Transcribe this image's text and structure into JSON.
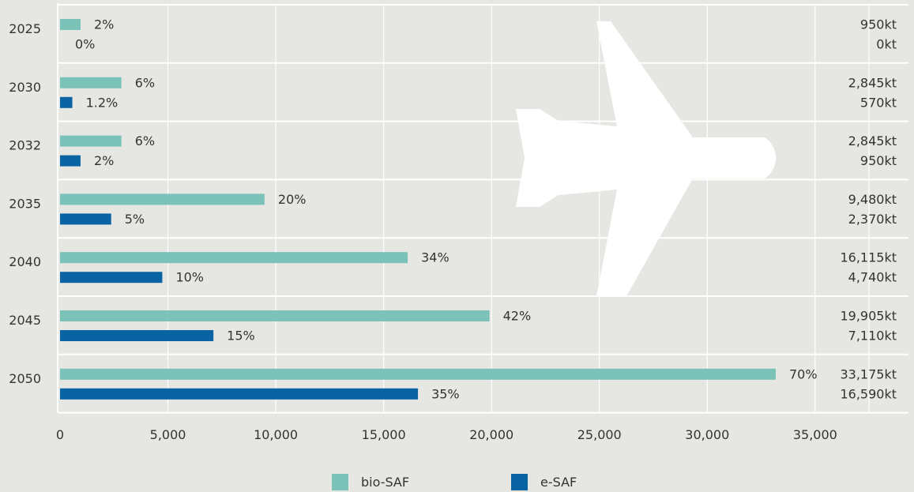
{
  "chart_data": {
    "type": "bar",
    "orientation": "horizontal",
    "categories": [
      "2025",
      "2030",
      "2032",
      "2035",
      "2040",
      "2045",
      "2050"
    ],
    "series": [
      {
        "name": "bio-SAF",
        "color": "#7bc2b9",
        "values": [
          950,
          2845,
          2845,
          9480,
          16115,
          19905,
          33175
        ],
        "percent_labels": [
          "2%",
          "6%",
          "6%",
          "20%",
          "34%",
          "42%",
          "70%"
        ],
        "value_labels": [
          "950kt",
          "2,845kt",
          "2,845kt",
          "9,480kt",
          "16,115kt",
          "19,905kt",
          "33,175kt"
        ]
      },
      {
        "name": "e-SAF",
        "color": "#0a64a4",
        "values": [
          0,
          570,
          950,
          2370,
          4740,
          7110,
          16590
        ],
        "percent_labels": [
          "0%",
          "1.2%",
          "2%",
          "5%",
          "10%",
          "15%",
          "35%"
        ],
        "value_labels": [
          "0kt",
          "570kt",
          "950kt",
          "2,370kt",
          "4,740kt",
          "7,110kt",
          "16,590kt"
        ]
      }
    ],
    "xlim": [
      0,
      37500
    ],
    "x_ticks": [
      0,
      5000,
      10000,
      15000,
      20000,
      25000,
      30000,
      35000
    ],
    "x_tick_labels": [
      "0",
      "5,000",
      "10,000",
      "15,000",
      "20,000",
      "25,000",
      "30,000",
      "35,000"
    ],
    "title": "",
    "xlabel": "",
    "ylabel": "",
    "grid": true,
    "legend": "bottom-center",
    "background_icon": "airplane-icon"
  }
}
